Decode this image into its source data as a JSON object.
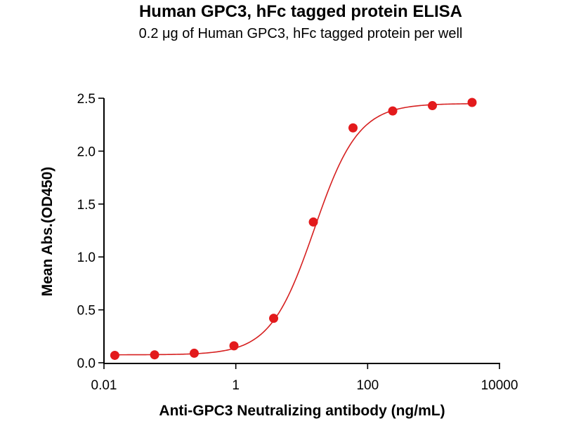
{
  "chart_data": {
    "type": "scatter",
    "title": "Human GPC3, hFc tagged protein ELISA",
    "subtitle": "0.2 μg of Human GPC3, hFc tagged protein per well",
    "xlabel": "Anti-GPC3 Neutralizing antibody (ng/mL)",
    "ylabel": "Mean Abs.(OD450)",
    "x_scale": "log",
    "xlim": [
      0.01,
      10000
    ],
    "ylim": [
      0,
      2.5
    ],
    "x_ticks": [
      0.01,
      1,
      100,
      10000
    ],
    "x_tick_labels": [
      "0.01",
      "1",
      "100",
      "10000"
    ],
    "y_ticks": [
      0,
      0.5,
      1.0,
      1.5,
      2.0,
      2.5
    ],
    "y_tick_labels": [
      "0.0",
      "0.5",
      "1.0",
      "1.5",
      "2.0",
      "2.5"
    ],
    "grid": false,
    "legend": "none",
    "color": "#e31a1c",
    "curve_color": "#d62020",
    "series": [
      {
        "x": [
          0.0146,
          0.0586,
          0.234,
          0.9375,
          3.75,
          15,
          60,
          240,
          960,
          3840
        ],
        "y": [
          0.07,
          0.075,
          0.09,
          0.16,
          0.42,
          1.33,
          2.22,
          2.38,
          2.43,
          2.46
        ]
      }
    ],
    "fit": {
      "model": "4PL",
      "bottom": 0.075,
      "top": 2.45,
      "ec50": 15.5,
      "hill": 1.3
    }
  }
}
